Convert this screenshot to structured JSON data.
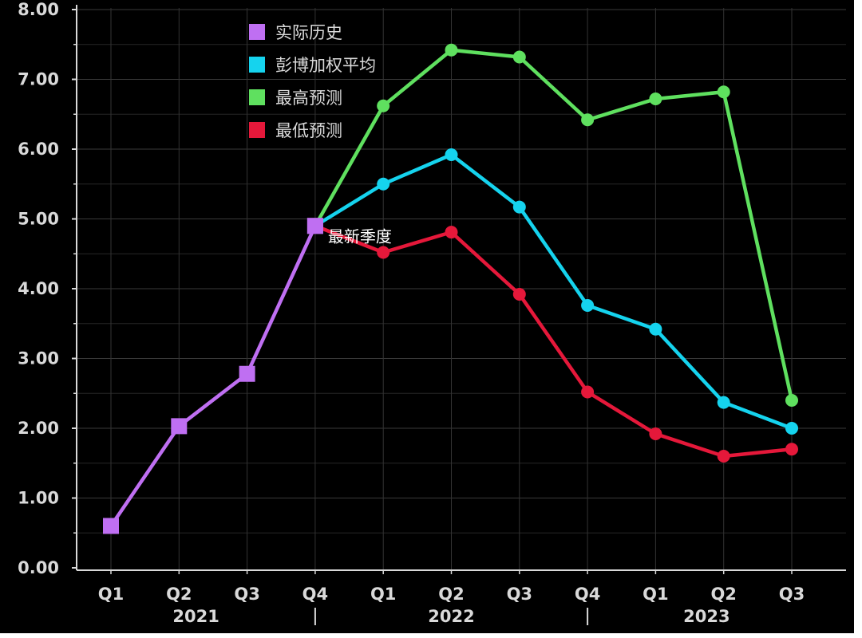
{
  "chart_data": {
    "type": "line",
    "categories": [
      "Q1",
      "Q2",
      "Q3",
      "Q4",
      "Q1",
      "Q2",
      "Q3",
      "Q4",
      "Q1",
      "Q2",
      "Q3"
    ],
    "year_labels": [
      {
        "label": "2021"
      },
      {
        "label": "2022"
      },
      {
        "label": "2023"
      }
    ],
    "y_tick_labels": [
      "0.00",
      "1.00",
      "2.00",
      "3.00",
      "4.00",
      "5.00",
      "6.00",
      "7.00",
      "8.00"
    ],
    "ylim": [
      0,
      8
    ],
    "grid": true,
    "legend_position": "top-left",
    "annotation": "最新季度",
    "series": [
      {
        "name": "实际历史",
        "color": "#bf6ff2",
        "marker": "square",
        "values": [
          0.6,
          2.03,
          2.78,
          4.9,
          null,
          null,
          null,
          null,
          null,
          null,
          null
        ]
      },
      {
        "name": "彭博加权平均",
        "color": "#15d3ee",
        "marker": "circle",
        "values": [
          null,
          null,
          null,
          4.9,
          5.5,
          5.92,
          5.17,
          3.76,
          3.42,
          2.37,
          2.0
        ]
      },
      {
        "name": "最高预测",
        "color": "#5fe05f",
        "marker": "circle",
        "values": [
          null,
          null,
          null,
          4.9,
          6.62,
          7.42,
          7.32,
          6.42,
          6.72,
          6.82,
          2.4
        ]
      },
      {
        "name": "最低预测",
        "color": "#e5183a",
        "marker": "circle",
        "values": [
          null,
          null,
          null,
          4.9,
          4.52,
          4.81,
          3.92,
          2.52,
          1.92,
          1.6,
          1.7
        ]
      }
    ]
  }
}
